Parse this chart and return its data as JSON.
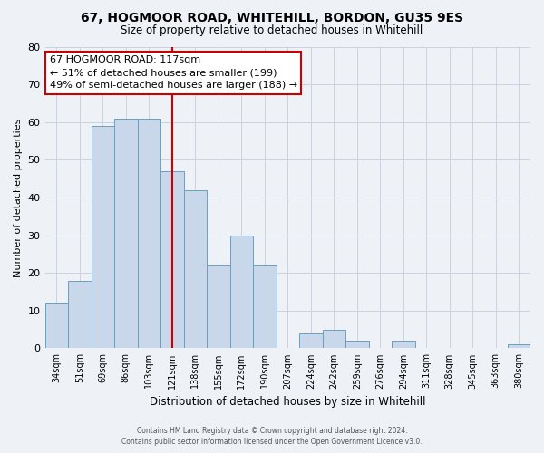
{
  "title": "67, HOGMOOR ROAD, WHITEHILL, BORDON, GU35 9ES",
  "subtitle": "Size of property relative to detached houses in Whitehill",
  "xlabel": "Distribution of detached houses by size in Whitehill",
  "ylabel": "Number of detached properties",
  "bar_labels": [
    "34sqm",
    "51sqm",
    "69sqm",
    "86sqm",
    "103sqm",
    "121sqm",
    "138sqm",
    "155sqm",
    "172sqm",
    "190sqm",
    "207sqm",
    "224sqm",
    "242sqm",
    "259sqm",
    "276sqm",
    "294sqm",
    "311sqm",
    "328sqm",
    "345sqm",
    "363sqm",
    "380sqm"
  ],
  "bar_values": [
    12,
    18,
    59,
    61,
    61,
    47,
    42,
    22,
    30,
    22,
    0,
    4,
    5,
    2,
    0,
    2,
    0,
    0,
    0,
    0,
    1
  ],
  "bar_color": "#c8d8ea",
  "bar_edge_color": "#6a9fc0",
  "ylim": [
    0,
    80
  ],
  "yticks": [
    0,
    10,
    20,
    30,
    40,
    50,
    60,
    70,
    80
  ],
  "vline_color": "#cc0000",
  "vline_pos": 5.5,
  "annotation_title": "67 HOGMOOR ROAD: 117sqm",
  "annotation_line1": "← 51% of detached houses are smaller (199)",
  "annotation_line2": "49% of semi-detached houses are larger (188) →",
  "annotation_box_color": "#ffffff",
  "annotation_box_edge": "#cc0000",
  "footer1": "Contains HM Land Registry data © Crown copyright and database right 2024.",
  "footer2": "Contains public sector information licensed under the Open Government Licence v3.0.",
  "bg_color": "#eef2f7",
  "plot_bg_color": "#eef2f7",
  "grid_color": "#c8d4e0"
}
